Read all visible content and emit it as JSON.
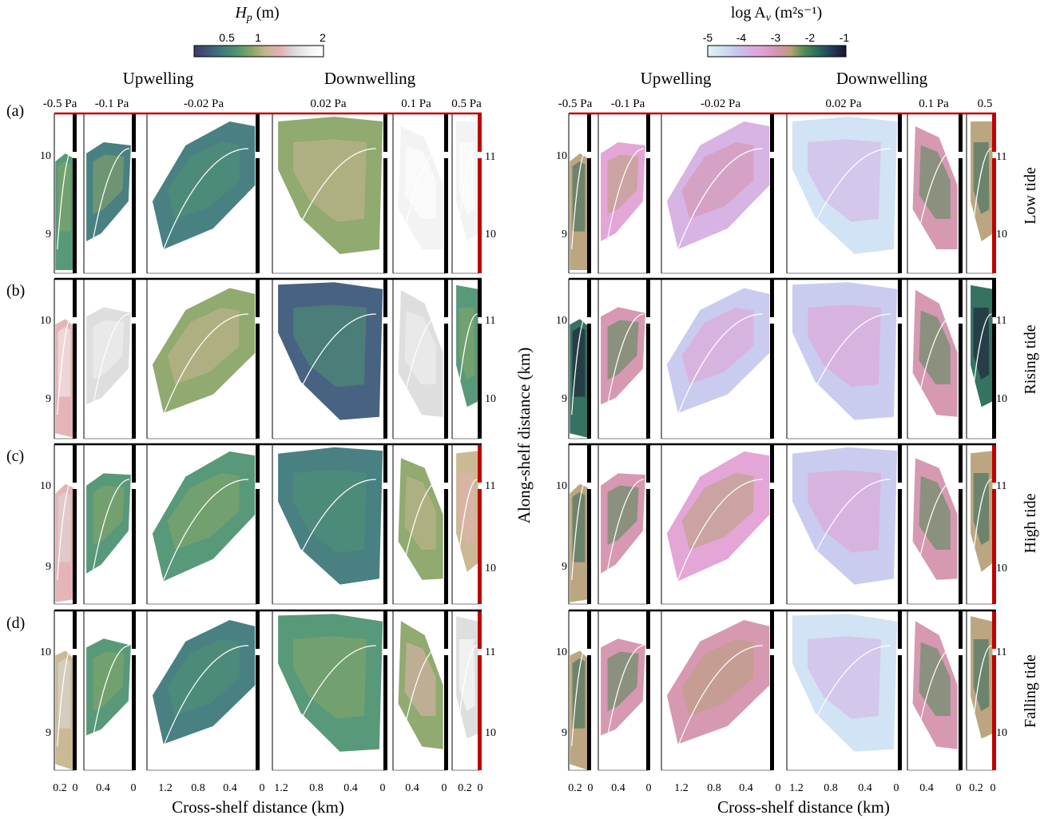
{
  "colorbars": {
    "left": {
      "title": "H",
      "title_sub": "p",
      "title_unit": " (m)",
      "ticks": [
        "0.5",
        "1",
        "2"
      ],
      "colors": [
        "#3d3d66",
        "#3e5a7a",
        "#3f7a7c",
        "#4f9472",
        "#8aa568",
        "#c8b48f",
        "#e3b0b3",
        "#dcdcdc",
        "#f2f2f2",
        "#ffffff"
      ]
    },
    "right": {
      "title": "log A",
      "title_sub": "v",
      "title_unit": " (m²s⁻¹)",
      "ticks": [
        "-5",
        "-4",
        "-3",
        "-2",
        "-1"
      ],
      "colors": [
        "#e2f1f4",
        "#cfe1f3",
        "#c6c9ee",
        "#d5b0e3",
        "#e1a1d4",
        "#d494ad",
        "#b8a07a",
        "#4f8a54",
        "#2a6a5a",
        "#1f3c5a",
        "#1a1530"
      ]
    }
  },
  "labels": {
    "upwelling": "Upwelling",
    "downwelling": "Downwelling",
    "stresses": [
      "-0.5 Pa",
      "-0.1 Pa",
      "-0.02 Pa",
      "0.02 Pa",
      "0.1 Pa",
      "0.5 Pa"
    ],
    "stresses_right": [
      "-0.5 Pa",
      "-0.1 Pa",
      "-0.02 Pa",
      "0.02 Pa",
      "0.1 Pa",
      "0.5"
    ],
    "panels": [
      "(a)",
      "(b)",
      "(c)",
      "(d)"
    ],
    "tides": [
      "Low tide",
      "Rising tide",
      "High tide",
      "Falling tide"
    ],
    "ylabel": "Along-shelf distance (km)",
    "xlabel": "Cross-shelf distance (km)"
  },
  "chart_data": {
    "type": "heatmap",
    "layout": "4 rows (tide phase) x 6 columns (wind stress) x 2 variables",
    "variables": [
      "Hp (m)",
      "log Av (m2 s-1)"
    ],
    "left_y_ticks": [
      "9",
      "10"
    ],
    "right_y_ticks": [
      "10",
      "11"
    ],
    "x_ticks_per_column": [
      [
        "0.2",
        "0"
      ],
      [
        "0.4",
        "0"
      ],
      [
        "1.2",
        "0.8",
        "0.4",
        "0"
      ],
      [
        "1.2",
        "0.8",
        "0.4",
        "0"
      ],
      [
        "0.4",
        "0"
      ],
      [
        "0.2",
        "0"
      ]
    ],
    "hp_levels": [
      [
        0.55,
        0.5,
        0.45,
        0.7,
        1.6,
        1.8
      ],
      [
        1.2,
        1.3,
        0.7,
        0.4,
        1.4,
        0.55
      ],
      [
        1.1,
        0.6,
        0.6,
        0.45,
        0.7,
        0.9
      ],
      [
        1.0,
        0.6,
        0.45,
        0.6,
        0.8,
        1.5
      ]
    ],
    "av_levels": [
      [
        -2.5,
        -3.4,
        -4.0,
        -4.5,
        -3.0,
        -2.5
      ],
      [
        -2.0,
        -3.0,
        -4.2,
        -4.3,
        -3.0,
        -2.0
      ],
      [
        -2.5,
        -3.0,
        -3.6,
        -4.3,
        -3.0,
        -2.5
      ],
      [
        -2.5,
        -3.0,
        -3.2,
        -4.5,
        -3.0,
        -2.5
      ]
    ]
  }
}
